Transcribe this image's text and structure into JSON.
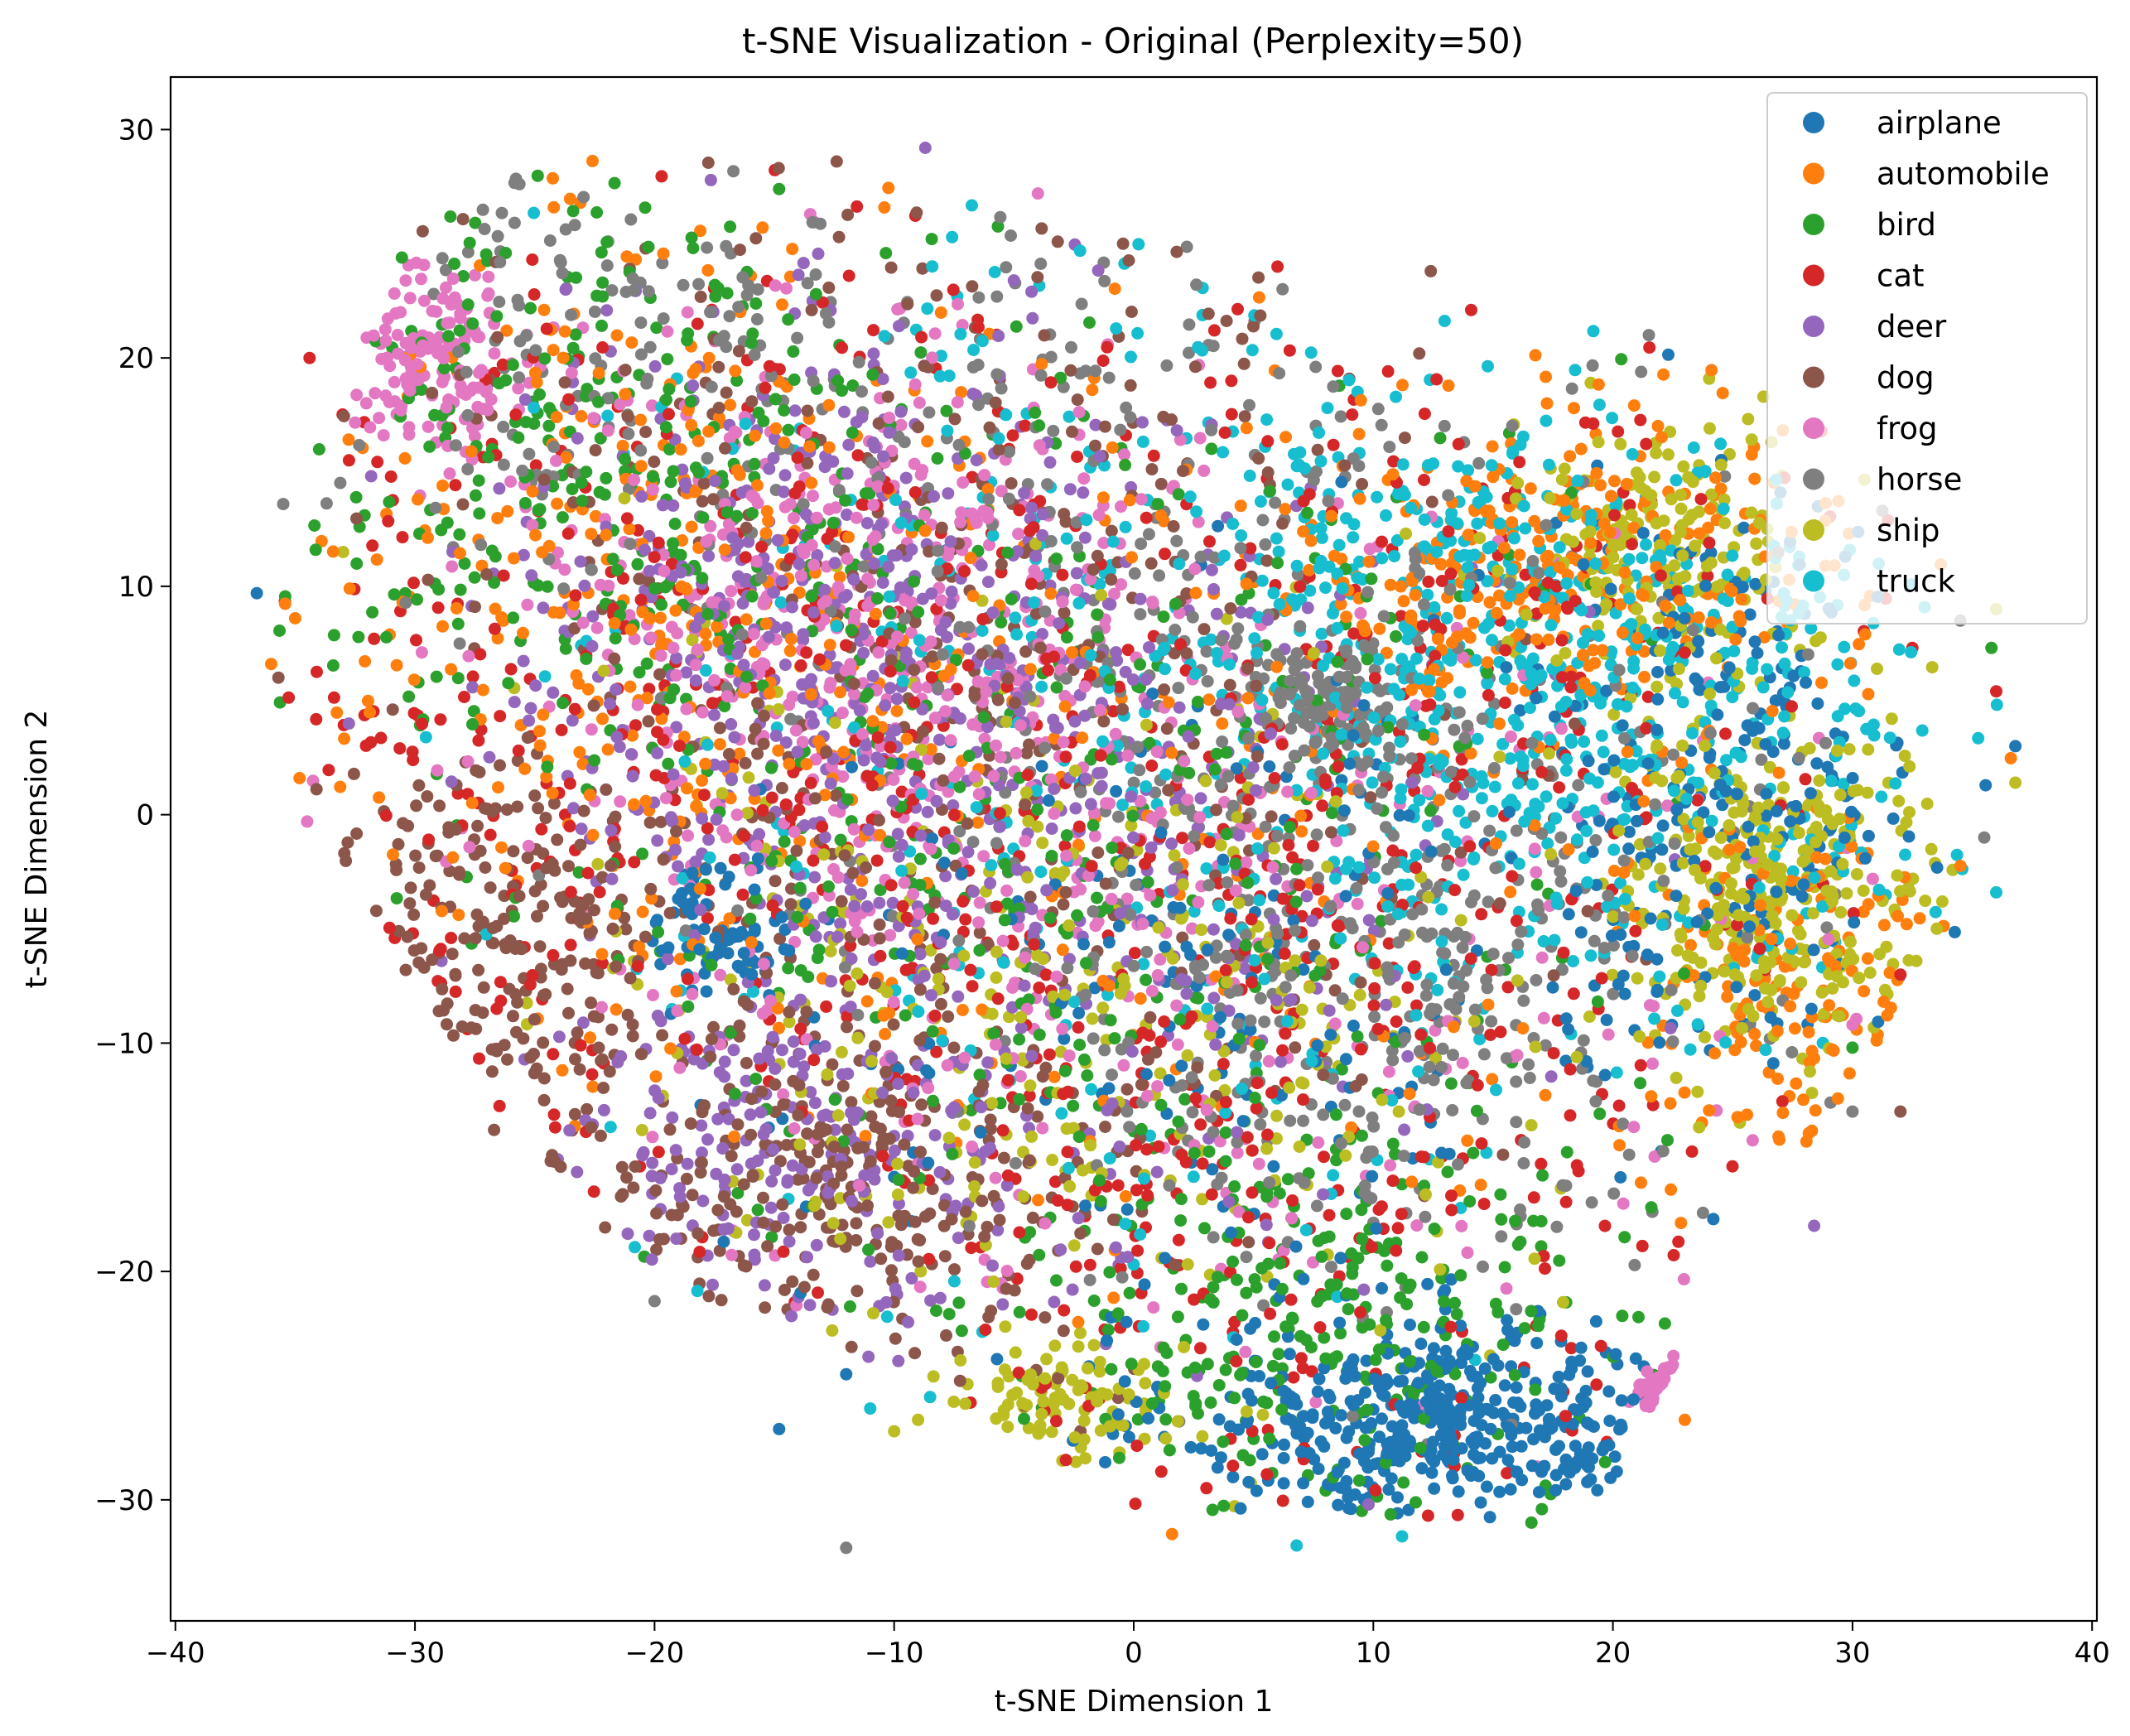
{
  "chart_data": {
    "type": "scatter",
    "title": "t-SNE Visualization - Original (Perplexity=50)",
    "xlabel": "t-SNE Dimension 1",
    "ylabel": "t-SNE Dimension 2",
    "xlim": [
      -40.2,
      40.2
    ],
    "ylim": [
      -35.3,
      32.3
    ],
    "xticks": [
      -40,
      -30,
      -20,
      -10,
      0,
      10,
      20,
      30,
      40
    ],
    "xtick_labels": [
      "−40",
      "−30",
      "−20",
      "−10",
      "0",
      "10",
      "20",
      "30",
      "40"
    ],
    "yticks": [
      -30,
      -20,
      -10,
      0,
      10,
      20,
      30
    ],
    "ytick_labels": [
      "−30",
      "−20",
      "−10",
      "0",
      "10",
      "20",
      "30"
    ],
    "grid": false,
    "legend_position": "top-right",
    "series": [
      {
        "name": "airplane",
        "color": "#1f77b4",
        "clusters": [
          {
            "cx": 13,
            "cy": -26.5,
            "sx": 5.5,
            "sy": 2.2,
            "w": 0.45
          },
          {
            "cx": 25,
            "cy": 2,
            "sx": 4,
            "sy": 6,
            "w": 0.25
          },
          {
            "cx": -17,
            "cy": -5,
            "sx": 1.5,
            "sy": 1.5,
            "w": 0.08
          },
          {
            "cx": 5,
            "cy": -8,
            "sx": 10,
            "sy": 8,
            "w": 0.22
          }
        ],
        "points": [
          [
            -36.6,
            9.7
          ],
          [
            -12,
            -24.5
          ],
          [
            -14.8,
            -26.9
          ],
          [
            36.8,
            3
          ]
        ]
      },
      {
        "name": "automobile",
        "color": "#ff7f0e",
        "clusters": [
          {
            "cx": 18,
            "cy": 11,
            "sx": 6,
            "sy": 3.5,
            "w": 0.3
          },
          {
            "cx": 28,
            "cy": -8,
            "sx": 4,
            "sy": 4,
            "w": 0.15
          },
          {
            "cx": -20,
            "cy": 10,
            "sx": 8,
            "sy": 9,
            "w": 0.35
          },
          {
            "cx": 0,
            "cy": -2,
            "sx": 14,
            "sy": 10,
            "w": 0.2
          }
        ],
        "points": [
          [
            -36,
            6.6
          ],
          [
            -35,
            8.6
          ],
          [
            23,
            -26.5
          ],
          [
            1.6,
            -31.5
          ]
        ]
      },
      {
        "name": "bird",
        "color": "#2ca02c",
        "clusters": [
          {
            "cx": -22,
            "cy": 15,
            "sx": 8,
            "sy": 6,
            "w": 0.3
          },
          {
            "cx": 8,
            "cy": -22,
            "sx": 6,
            "sy": 5,
            "w": 0.3
          },
          {
            "cx": -5,
            "cy": 0,
            "sx": 11,
            "sy": 10,
            "w": 0.4
          }
        ],
        "points": [
          [
            -34,
            16
          ],
          [
            16.6,
            -31
          ],
          [
            35.8,
            7.3
          ],
          [
            30,
            -10.2
          ]
        ]
      },
      {
        "name": "cat",
        "color": "#d62728",
        "clusters": [
          {
            "cx": -18,
            "cy": 5,
            "sx": 10,
            "sy": 10,
            "w": 0.4
          },
          {
            "cx": 5,
            "cy": -12,
            "sx": 10,
            "sy": 10,
            "w": 0.4
          },
          {
            "cx": 15,
            "cy": 8,
            "sx": 8,
            "sy": 8,
            "w": 0.2
          }
        ],
        "points": [
          [
            -34.4,
            20
          ],
          [
            6,
            24
          ],
          [
            32.5,
            7.3
          ],
          [
            36,
            5.4
          ],
          [
            32,
            -7
          ]
        ]
      },
      {
        "name": "deer",
        "color": "#9467bd",
        "clusters": [
          {
            "cx": -13,
            "cy": 9,
            "sx": 7,
            "sy": 6,
            "w": 0.45
          },
          {
            "cx": -14,
            "cy": -15,
            "sx": 5,
            "sy": 3.5,
            "w": 0.2
          },
          {
            "cx": -3,
            "cy": -3,
            "sx": 9,
            "sy": 9,
            "w": 0.35
          }
        ],
        "points": [
          [
            -8.7,
            29.2
          ],
          [
            28.4,
            -18
          ],
          [
            9.8,
            -30.2
          ]
        ]
      },
      {
        "name": "dog",
        "color": "#8c564b",
        "clusters": [
          {
            "cx": -27,
            "cy": -6,
            "sx": 3.5,
            "sy": 4,
            "w": 0.2
          },
          {
            "cx": -12,
            "cy": -16,
            "sx": 6,
            "sy": 4,
            "w": 0.3
          },
          {
            "cx": -10,
            "cy": 5,
            "sx": 12,
            "sy": 12,
            "w": 0.5
          }
        ],
        "points": [
          [
            -35.7,
            6
          ],
          [
            -26.7,
            -13.8
          ],
          [
            -12.4,
            28.6
          ],
          [
            32,
            -13
          ],
          [
            12.4,
            23.8
          ]
        ]
      },
      {
        "name": "frog",
        "color": "#e377c2",
        "clusters": [
          {
            "cx": -29,
            "cy": 20,
            "sx": 2,
            "sy": 2,
            "w": 0.15
          },
          {
            "cx": -12,
            "cy": 8,
            "sx": 7,
            "sy": 6,
            "w": 0.45
          },
          {
            "cx": 23.5,
            "cy": -25.5,
            "sx": 0.8,
            "sy": 0.6,
            "w": 0.07
          },
          {
            "cx": 0,
            "cy": -5,
            "sx": 12,
            "sy": 10,
            "w": 0.33
          }
        ],
        "points": [
          [
            -34.5,
            -0.3
          ],
          [
            -4,
            27.2
          ],
          [
            30,
            -9.2
          ]
        ]
      },
      {
        "name": "horse",
        "color": "#7f7f7f",
        "clusters": [
          {
            "cx": 8,
            "cy": 5,
            "sx": 1.5,
            "sy": 1.2,
            "w": 0.1
          },
          {
            "cx": 10,
            "cy": -5,
            "sx": 8,
            "sy": 8,
            "w": 0.45
          },
          {
            "cx": -22,
            "cy": 20,
            "sx": 6,
            "sy": 5,
            "w": 0.15
          },
          {
            "cx": 0,
            "cy": 10,
            "sx": 10,
            "sy": 10,
            "w": 0.3
          }
        ],
        "points": [
          [
            -12,
            -32.1
          ],
          [
            -20,
            -21.3
          ],
          [
            -35.5,
            13.6
          ],
          [
            21.5,
            21
          ],
          [
            30,
            -13
          ],
          [
            34.5,
            8.5
          ],
          [
            35.5,
            -1
          ]
        ]
      },
      {
        "name": "ship",
        "color": "#bcbd22",
        "clusters": [
          {
            "cx": 27,
            "cy": -3,
            "sx": 3.5,
            "sy": 4,
            "w": 0.35
          },
          {
            "cx": 22,
            "cy": 11,
            "sx": 3,
            "sy": 3,
            "w": 0.2
          },
          {
            "cx": -3,
            "cy": -26,
            "sx": 3,
            "sy": 1.5,
            "w": 0.1
          },
          {
            "cx": -3,
            "cy": -8,
            "sx": 10,
            "sy": 8,
            "w": 0.35
          }
        ],
        "points": [
          [
            -33,
            11.5
          ],
          [
            36.8,
            1.4
          ],
          [
            -10,
            -27
          ],
          [
            -9,
            -26.5
          ],
          [
            36,
            9
          ]
        ]
      },
      {
        "name": "truck",
        "color": "#17becf",
        "clusters": [
          {
            "cx": 20,
            "cy": 4,
            "sx": 7,
            "sy": 6,
            "w": 0.45
          },
          {
            "cx": 12,
            "cy": 10,
            "sx": 6,
            "sy": 4,
            "w": 0.2
          },
          {
            "cx": 0,
            "cy": 5,
            "sx": 12,
            "sy": 12,
            "w": 0.35
          }
        ],
        "points": [
          [
            -11,
            -26
          ],
          [
            6.8,
            -32
          ],
          [
            11.2,
            -31.6
          ],
          [
            36,
            -3.4
          ],
          [
            -8.5,
            -25.5
          ]
        ]
      }
    ]
  }
}
